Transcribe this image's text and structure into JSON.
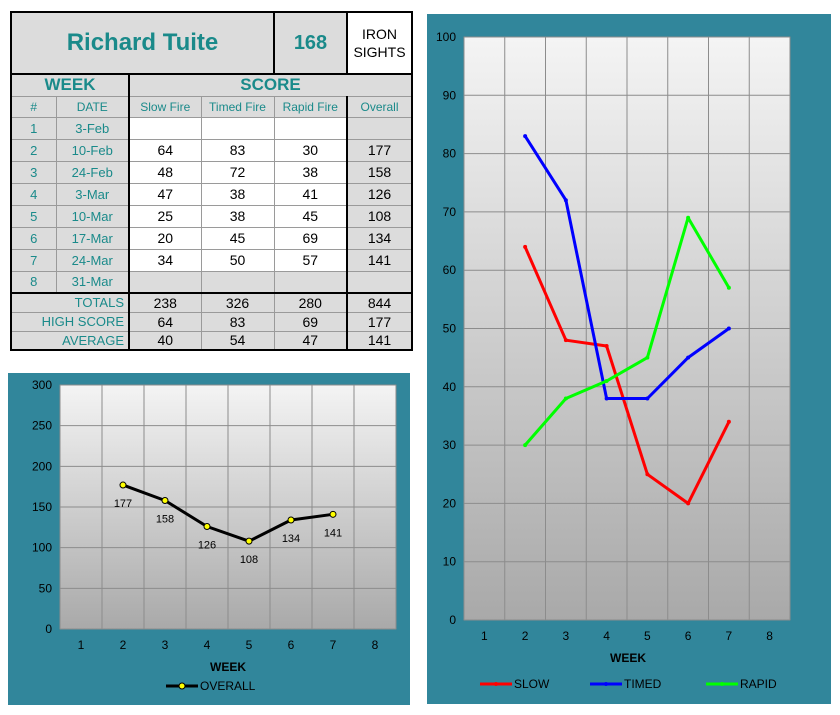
{
  "header": {
    "shooter_name": "Richard Tuite",
    "shooter_number": "168",
    "sights_line1": "IRON",
    "sights_line2": "SIGHTS"
  },
  "table": {
    "week_label": "WEEK",
    "score_label": "SCORE",
    "columns": [
      "#",
      "DATE",
      "Slow Fire",
      "Timed Fire",
      "Rapid Fire",
      "Overall"
    ],
    "rows": [
      {
        "num": "1",
        "date": "3-Feb",
        "slow": "",
        "timed": "",
        "rapid": "",
        "overall": ""
      },
      {
        "num": "2",
        "date": "10-Feb",
        "slow": "64",
        "timed": "83",
        "rapid": "30",
        "overall": "177"
      },
      {
        "num": "3",
        "date": "24-Feb",
        "slow": "48",
        "timed": "72",
        "rapid": "38",
        "overall": "158"
      },
      {
        "num": "4",
        "date": "3-Mar",
        "slow": "47",
        "timed": "38",
        "rapid": "41",
        "overall": "126"
      },
      {
        "num": "5",
        "date": "10-Mar",
        "slow": "25",
        "timed": "38",
        "rapid": "45",
        "overall": "108"
      },
      {
        "num": "6",
        "date": "17-Mar",
        "slow": "20",
        "timed": "45",
        "rapid": "69",
        "overall": "134"
      },
      {
        "num": "7",
        "date": "24-Mar",
        "slow": "34",
        "timed": "50",
        "rapid": "57",
        "overall": "141"
      },
      {
        "num": "8",
        "date": "31-Mar",
        "slow": "",
        "timed": "",
        "rapid": "",
        "overall": ""
      }
    ],
    "summary": [
      {
        "label": "TOTALS",
        "slow": "238",
        "timed": "326",
        "rapid": "280",
        "overall": "844"
      },
      {
        "label": "HIGH SCORE",
        "slow": "64",
        "timed": "83",
        "rapid": "69",
        "overall": "177"
      },
      {
        "label": "AVERAGE",
        "slow": "40",
        "timed": "54",
        "rapid": "47",
        "overall": "141"
      }
    ]
  },
  "colors": {
    "frame": "#31869b",
    "slow": "#ff0000",
    "timed": "#0000ff",
    "rapid": "#00ff00",
    "overall_line": "#000000",
    "overall_marker": "#ffff00"
  },
  "chart_data": [
    {
      "type": "line",
      "name": "overall-chart",
      "x": [
        1,
        2,
        3,
        4,
        5,
        6,
        7,
        8
      ],
      "xlabel": "WEEK",
      "ylabel": "",
      "xlim": [
        0.5,
        8.5
      ],
      "ylim": [
        0,
        300
      ],
      "yticks": [
        0,
        50,
        100,
        150,
        200,
        250,
        300
      ],
      "grid": true,
      "legend": "bottom",
      "series": [
        {
          "name": "OVERALL",
          "x": [
            2,
            3,
            4,
            5,
            6,
            7
          ],
          "values": [
            177,
            158,
            126,
            108,
            134,
            141
          ],
          "data_labels": [
            "177",
            "158",
            "126",
            "108",
            "134",
            "141"
          ]
        }
      ]
    },
    {
      "type": "line",
      "name": "stage-chart",
      "x": [
        1,
        2,
        3,
        4,
        5,
        6,
        7,
        8
      ],
      "xlabel": "WEEK",
      "ylabel": "",
      "xlim": [
        0.5,
        8.5
      ],
      "ylim": [
        0,
        100
      ],
      "yticks": [
        0,
        10,
        20,
        30,
        40,
        50,
        60,
        70,
        80,
        90,
        100
      ],
      "grid": true,
      "legend": "bottom",
      "series": [
        {
          "name": "SLOW",
          "x": [
            2,
            3,
            4,
            5,
            6,
            7
          ],
          "values": [
            64,
            48,
            47,
            25,
            20,
            34
          ]
        },
        {
          "name": "TIMED",
          "x": [
            2,
            3,
            4,
            5,
            6,
            7
          ],
          "values": [
            83,
            72,
            38,
            38,
            45,
            50
          ]
        },
        {
          "name": "RAPID",
          "x": [
            2,
            3,
            4,
            5,
            6,
            7
          ],
          "values": [
            30,
            38,
            41,
            45,
            69,
            57
          ]
        }
      ]
    }
  ]
}
